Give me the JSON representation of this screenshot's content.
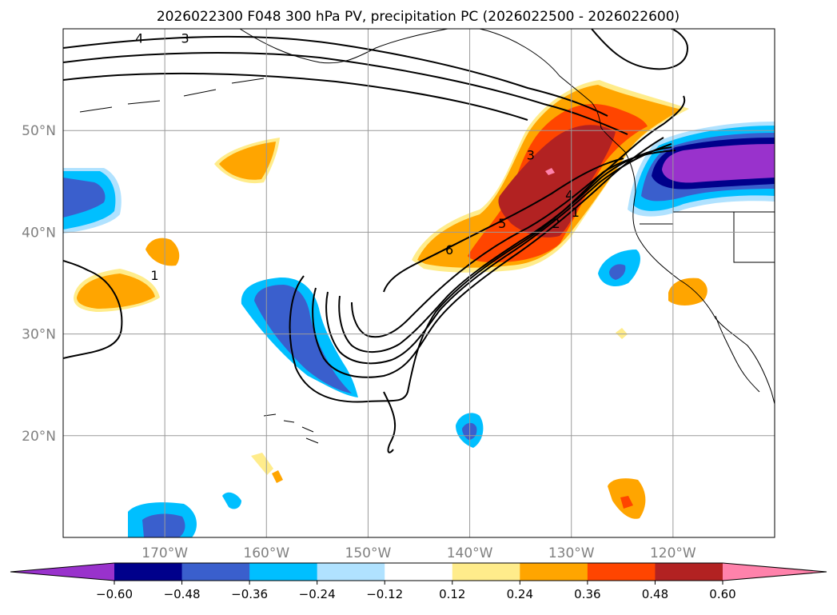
{
  "chart_data": {
    "type": "map-contour",
    "title": "2026022300 F048 300 hPa PV, precipitation PC (2026022500 - 2026022600)",
    "lon_range": [
      -180,
      -110
    ],
    "lat_range": [
      10,
      60
    ],
    "lon_ticks": [
      {
        "lon": -170,
        "label": "170°W"
      },
      {
        "lon": -160,
        "label": "160°W"
      },
      {
        "lon": -150,
        "label": "150°W"
      },
      {
        "lon": -140,
        "label": "140°W"
      },
      {
        "lon": -130,
        "label": "130°W"
      },
      {
        "lon": -120,
        "label": "120°W"
      }
    ],
    "lat_ticks": [
      {
        "lat": 20,
        "label": "20°N"
      },
      {
        "lat": 30,
        "label": "30°N"
      },
      {
        "lat": 40,
        "label": "40°N"
      },
      {
        "lat": 50,
        "label": "50°N"
      }
    ],
    "pv_contour_labels": [
      {
        "value": "4",
        "lon": -172.5,
        "lat": 59.1
      },
      {
        "value": "3",
        "lon": -168.0,
        "lat": 59.1
      },
      {
        "value": "3",
        "lon": -134.0,
        "lat": 47.6
      },
      {
        "value": "4",
        "lon": -130.2,
        "lat": 43.7
      },
      {
        "value": "5",
        "lon": -136.8,
        "lat": 40.9
      },
      {
        "value": "2",
        "lon": -131.5,
        "lat": 40.9
      },
      {
        "value": "1",
        "lon": -129.6,
        "lat": 42.0
      },
      {
        "value": "6",
        "lon": -142.0,
        "lat": 38.3
      },
      {
        "value": "1",
        "lon": -171.0,
        "lat": 35.8
      }
    ],
    "colorbar": {
      "levels": [
        -0.6,
        -0.48,
        -0.36,
        -0.24,
        -0.12,
        0.12,
        0.24,
        0.36,
        0.48,
        0.6
      ],
      "tick_labels": [
        "−0.60",
        "−0.48",
        "−0.36",
        "−0.24",
        "−0.12",
        "0.12",
        "0.24",
        "0.36",
        "0.48",
        "0.60"
      ],
      "colors": [
        "#9932cc",
        "#00008b",
        "#3a5fcd",
        "#00bfff",
        "#b0e2ff",
        "#ffffff",
        "#ffec8b",
        "#ffa500",
        "#ff4500",
        "#b22222",
        "#ff82ab"
      ],
      "extend": "both"
    },
    "precip_pc_areas": [
      {
        "name": "atmospheric-river-plume",
        "value": 0.36,
        "color": "#ffa500"
      },
      {
        "name": "atmospheric-river-core",
        "value": 0.48,
        "color": "#ff4500"
      },
      {
        "name": "atmospheric-river-max",
        "value": 0.6,
        "color": "#b22222"
      },
      {
        "name": "west-us-negative",
        "value": -0.6,
        "color": "#9932cc"
      },
      {
        "name": "central-pacific-negative",
        "value": -0.36,
        "color": "#3a5fcd"
      },
      {
        "name": "dateline-negative",
        "value": -0.36,
        "color": "#3a5fcd"
      }
    ]
  }
}
